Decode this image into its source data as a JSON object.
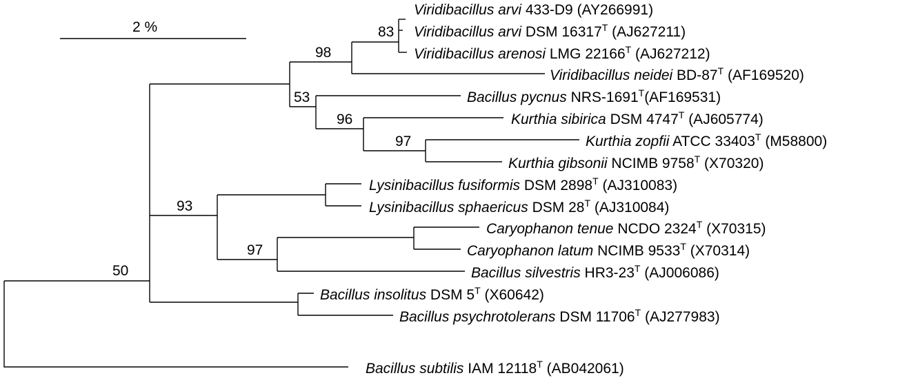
{
  "scale_bar": {
    "label": "2 %"
  },
  "type_marker": "T",
  "taxa": [
    {
      "id": "t1",
      "genus": "Viridibacillus arvi",
      "strain": " 433-D9 ",
      "type": false,
      "acc": "(AY266991)"
    },
    {
      "id": "t2",
      "genus": "Viridibacillus arvi",
      "strain": " DSM 16317",
      "type": true,
      "acc": " (AJ627211)"
    },
    {
      "id": "t3",
      "genus": "Viridibacillus arenosi",
      "strain": " LMG 22166",
      "type": true,
      "acc": " (AJ627212)"
    },
    {
      "id": "t4",
      "genus": "Viridibacillus neidei",
      "strain": " BD-87",
      "type": true,
      "acc": " (AF169520)"
    },
    {
      "id": "t5",
      "genus": "Bacillus pycnus",
      "strain": " NRS-1691",
      "type": true,
      "acc": "(AF169531)"
    },
    {
      "id": "t6",
      "genus": "Kurthia sibirica",
      "strain": " DSM 4747",
      "type": true,
      "acc": " (AJ605774)"
    },
    {
      "id": "t7",
      "genus": "Kurthia zopfii",
      "strain": " ATCC 33403",
      "type": true,
      "acc": " (M58800)"
    },
    {
      "id": "t8",
      "genus": "Kurthia gibsonii",
      "strain": " NCIMB 9758",
      "type": true,
      "acc": " (X70320)"
    },
    {
      "id": "t9",
      "genus": "Lysinibacillus fusiformis",
      "strain": " DSM 2898",
      "type": true,
      "acc": " (AJ310083)"
    },
    {
      "id": "t10",
      "genus": "Lysinibacillus sphaericus",
      "strain": " DSM 28",
      "type": true,
      "acc": " (AJ310084)"
    },
    {
      "id": "t11",
      "genus": "Caryophanon tenue",
      "strain": " NCDO 2324",
      "type": true,
      "acc": " (X70315)"
    },
    {
      "id": "t12",
      "genus": "Caryophanon latum",
      "strain": " NCIMB 9533",
      "type": true,
      "acc": " (X70314)"
    },
    {
      "id": "t13",
      "genus": "Bacillus silvestris",
      "strain": " HR3-23",
      "type": true,
      "acc": " (AJ006086)"
    },
    {
      "id": "t14",
      "genus": "Bacillus insolitus",
      "strain": " DSM 5",
      "type": true,
      "acc": " (X60642)"
    },
    {
      "id": "t15",
      "genus": "Bacillus psychrotolerans",
      "strain": " DSM 11706",
      "type": true,
      "acc": " (AJ277983)"
    },
    {
      "id": "t16",
      "genus": "Bacillus subtilis",
      "strain": " IAM 12118",
      "type": true,
      "acc": " (AB042061)"
    }
  ],
  "bootstrap": [
    {
      "id": "b83",
      "value": "83"
    },
    {
      "id": "b98",
      "value": "98"
    },
    {
      "id": "b53",
      "value": "53"
    },
    {
      "id": "b96",
      "value": "96"
    },
    {
      "id": "b97a",
      "value": "97"
    },
    {
      "id": "b93",
      "value": "93"
    },
    {
      "id": "b97b",
      "value": "97"
    },
    {
      "id": "b50",
      "value": "50"
    }
  ]
}
